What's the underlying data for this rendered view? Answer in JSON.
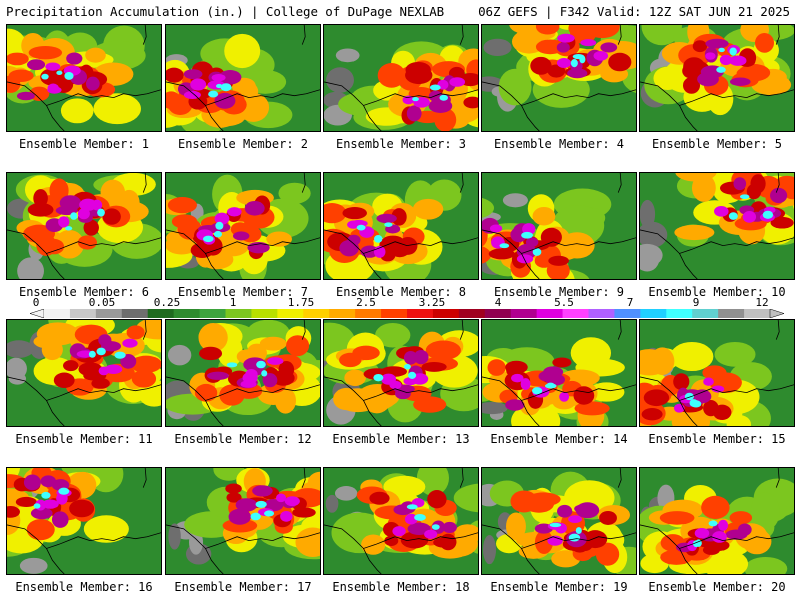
{
  "header": {
    "left": "Precipitation Accumulation (in.) | College of DuPage NEXLAB",
    "right": "06Z GEFS | F342 Valid: 12Z SAT JUN 21 2025"
  },
  "member_label_prefix": "Ensemble Member: ",
  "members": [
    {
      "label": "Ensemble Member: 1"
    },
    {
      "label": "Ensemble Member: 2"
    },
    {
      "label": "Ensemble Member: 3"
    },
    {
      "label": "Ensemble Member: 4"
    },
    {
      "label": "Ensemble Member: 5"
    },
    {
      "label": "Ensemble Member: 6"
    },
    {
      "label": "Ensemble Member: 7"
    },
    {
      "label": "Ensemble Member: 8"
    },
    {
      "label": "Ensemble Member: 9"
    },
    {
      "label": "Ensemble Member: 10"
    },
    {
      "label": "Ensemble Member: 11"
    },
    {
      "label": "Ensemble Member: 12"
    },
    {
      "label": "Ensemble Member: 13"
    },
    {
      "label": "Ensemble Member: 14"
    },
    {
      "label": "Ensemble Member: 15"
    },
    {
      "label": "Ensemble Member: 16"
    },
    {
      "label": "Ensemble Member: 17"
    },
    {
      "label": "Ensemble Member: 18"
    },
    {
      "label": "Ensemble Member: 19"
    },
    {
      "label": "Ensemble Member: 20"
    }
  ],
  "colorbar": {
    "labels": [
      "0",
      "0.05",
      "0.25",
      "1",
      "1.75",
      "2.5",
      "3.25",
      "4",
      "5.5",
      "7",
      "9",
      "12"
    ],
    "colors": [
      "#f2f2f2",
      "#c8c8c8",
      "#9a9a9a",
      "#6e6e6e",
      "#1f6b1f",
      "#2e8b2e",
      "#3da33d",
      "#7cc61f",
      "#b8e000",
      "#f0f000",
      "#ffd000",
      "#ffaa00",
      "#ff7a00",
      "#ff4000",
      "#ee1010",
      "#cc0000",
      "#a00020",
      "#900050",
      "#b00090",
      "#e000e0",
      "#ff40ff",
      "#b060ff",
      "#5090ff",
      "#20d0ff",
      "#40ffff",
      "#60d0d0",
      "#909090",
      "#c0c0c0"
    ]
  }
}
